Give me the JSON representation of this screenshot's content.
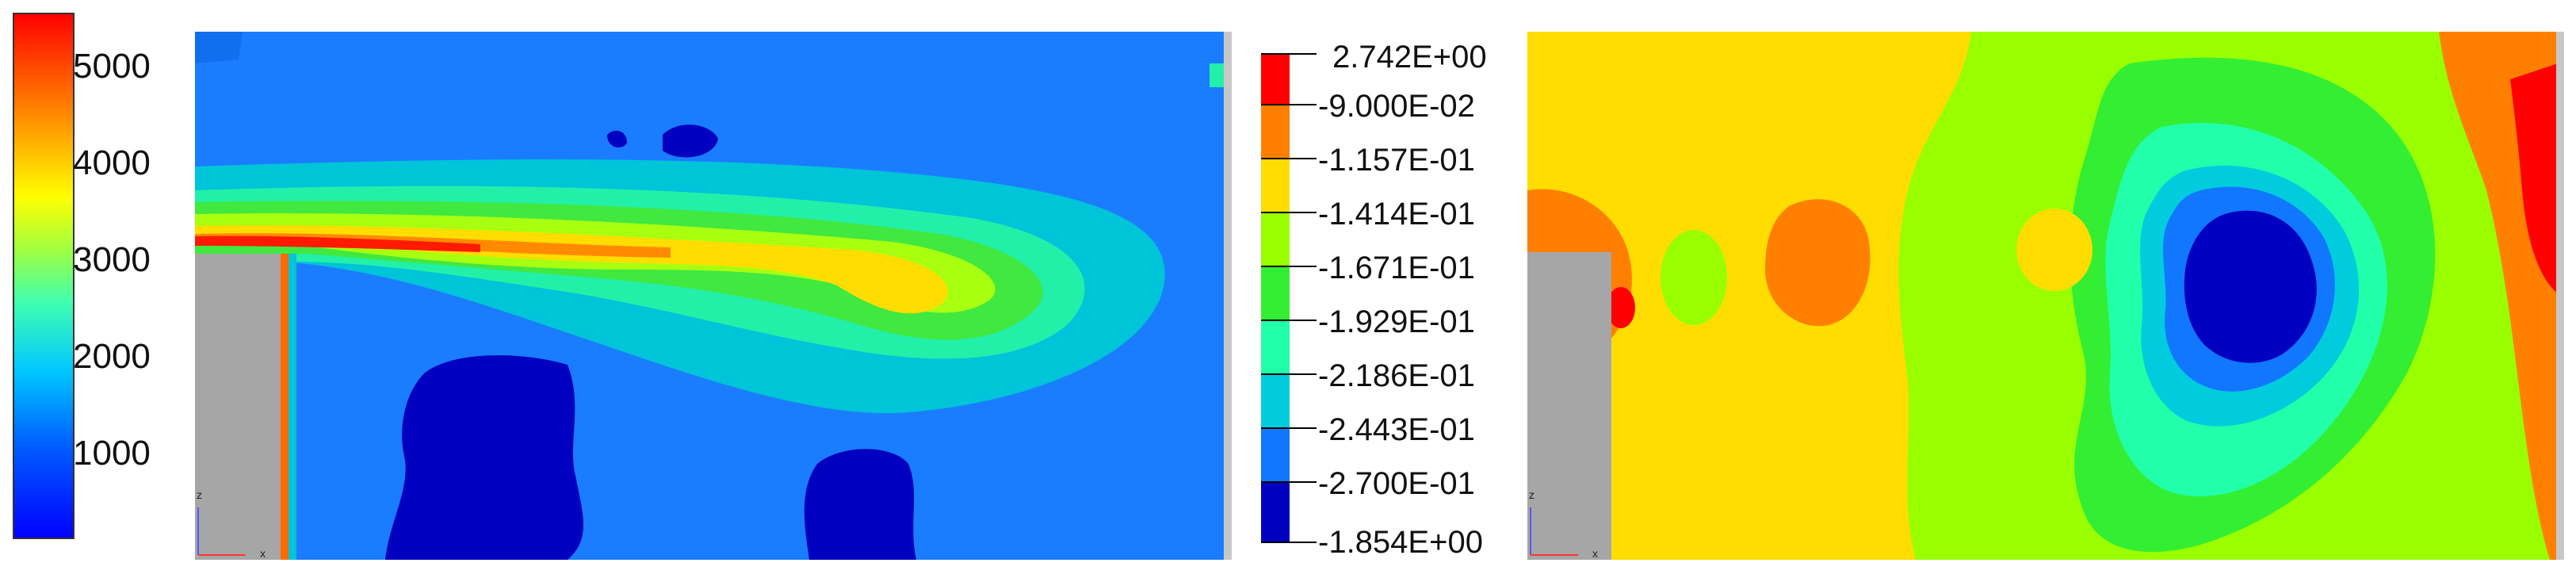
{
  "chart_data": [
    {
      "type": "heatmap",
      "colorbar": {
        "orientation": "vertical",
        "ticks": [
          "5000",
          "4000",
          "3000",
          "2000",
          "1000"
        ],
        "tick_values": [
          5000,
          4000,
          3000,
          2000,
          1000
        ],
        "range": [
          0,
          5500
        ],
        "colors": [
          "#0000ff",
          "#0080ff",
          "#00e0ff",
          "#40ff80",
          "#c0ff00",
          "#ffff00",
          "#ff8000",
          "#ff0000"
        ]
      },
      "axis_triad": {
        "x": "x",
        "z": "z"
      },
      "description": ""
    },
    {
      "type": "heatmap",
      "legend": {
        "labels": [
          "2.742E+00",
          "-9.000E-02",
          "-1.157E-01",
          "-1.414E-01",
          "-1.671E-01",
          "-1.929E-01",
          "-2.186E-01",
          "-2.443E-01",
          "-2.700E-01",
          "-1.854E+00"
        ],
        "band_colors": [
          "#ff0000",
          "#ff8000",
          "#ffdd00",
          "#99ff00",
          "#33ee33",
          "#22ffaa",
          "#00ccdd",
          "#1177ff",
          "#0000c0"
        ]
      },
      "axis_triad": {
        "x": "x",
        "z": "z"
      }
    }
  ],
  "colors": {
    "red": "#ff0000",
    "orange": "#ff8000",
    "yellow": "#ffdd00",
    "lime": "#99ff00",
    "green": "#33ee33",
    "aqua": "#22ffaa",
    "cyan": "#00ccdd",
    "blue": "#1177ff",
    "navy": "#0000c0",
    "obstacle": "#a6a6a6"
  }
}
